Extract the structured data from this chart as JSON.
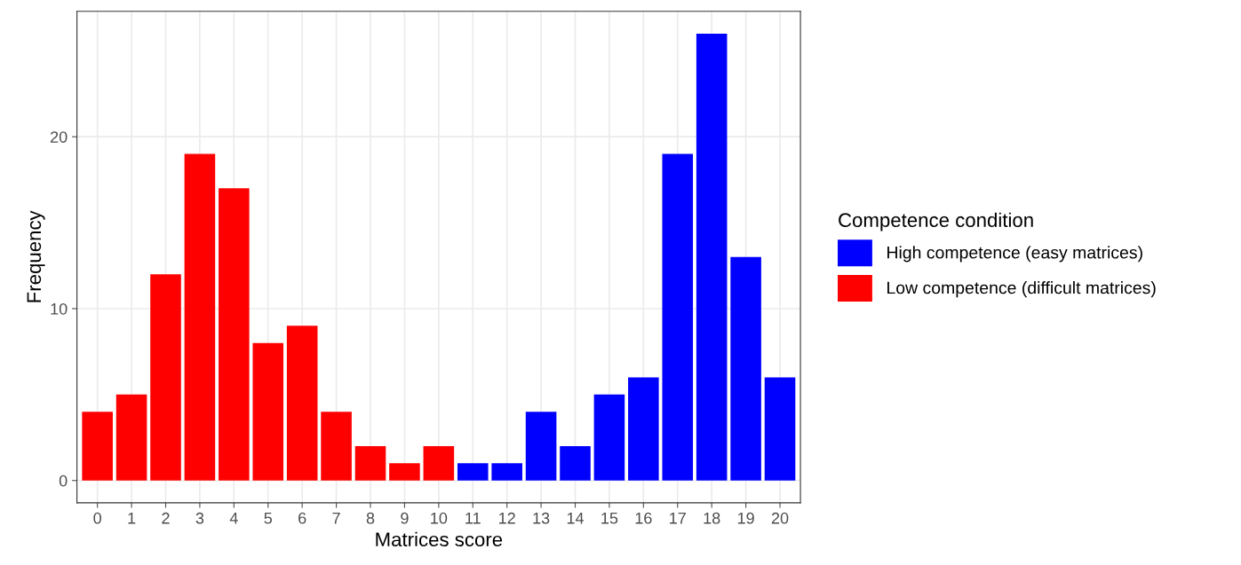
{
  "chart_data": {
    "type": "bar",
    "xlabel": "Matrices score",
    "ylabel": "Frequency",
    "legend_title": "Competence condition",
    "categories": [
      "0",
      "1",
      "2",
      "3",
      "4",
      "5",
      "6",
      "7",
      "8",
      "9",
      "10",
      "11",
      "12",
      "13",
      "14",
      "15",
      "16",
      "17",
      "18",
      "19",
      "20"
    ],
    "series": [
      {
        "name": "High competence (easy matrices)",
        "color": "#0000ff",
        "values": [
          null,
          null,
          null,
          null,
          null,
          null,
          null,
          null,
          null,
          null,
          null,
          1,
          1,
          4,
          2,
          5,
          6,
          19,
          26,
          13,
          6
        ]
      },
      {
        "name": "Low competence (difficult matrices)",
        "color": "#ff0000",
        "values": [
          4,
          5,
          12,
          19,
          17,
          8,
          9,
          4,
          2,
          1,
          2,
          null,
          null,
          null,
          null,
          null,
          null,
          null,
          null,
          null,
          null
        ]
      }
    ],
    "ylim": [
      -1.3,
      27.3
    ],
    "yticks": [
      0,
      10,
      20
    ],
    "grid": true,
    "legend": "right"
  }
}
